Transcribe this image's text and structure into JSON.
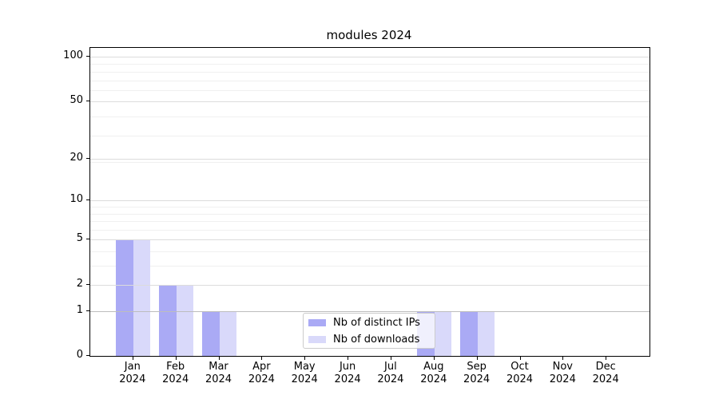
{
  "chart_data": {
    "type": "bar",
    "title": "modules 2024",
    "months": [
      "Jan",
      "Feb",
      "Mar",
      "Apr",
      "May",
      "Jun",
      "Jul",
      "Aug",
      "Sep",
      "Oct",
      "Nov",
      "Dec"
    ],
    "year": "2024",
    "series": [
      {
        "name": "Nb of distinct IPs",
        "color": "#aaaaf5",
        "values": [
          5,
          2,
          1,
          0,
          0,
          0,
          0,
          1,
          1,
          0,
          0,
          0
        ]
      },
      {
        "name": "Nb of downloads",
        "color": "#d9d9fa",
        "values": [
          5,
          2,
          1,
          0,
          0,
          0,
          0,
          1,
          1,
          0,
          0,
          0
        ]
      }
    ],
    "yscale": "log1p",
    "yticks": [
      0,
      1,
      2,
      5,
      10,
      20,
      50,
      100
    ],
    "ylim": [
      0,
      115
    ],
    "grid": "horizontal",
    "legend_position": "lower-center"
  },
  "style": {
    "major_grid_color": "#dcdcdc",
    "baseline_grid_color": "#bdbdbd",
    "minor_grid_color": "#f0f0f0",
    "axis_color": "#000000",
    "legend_border_color": "#cccccc"
  }
}
